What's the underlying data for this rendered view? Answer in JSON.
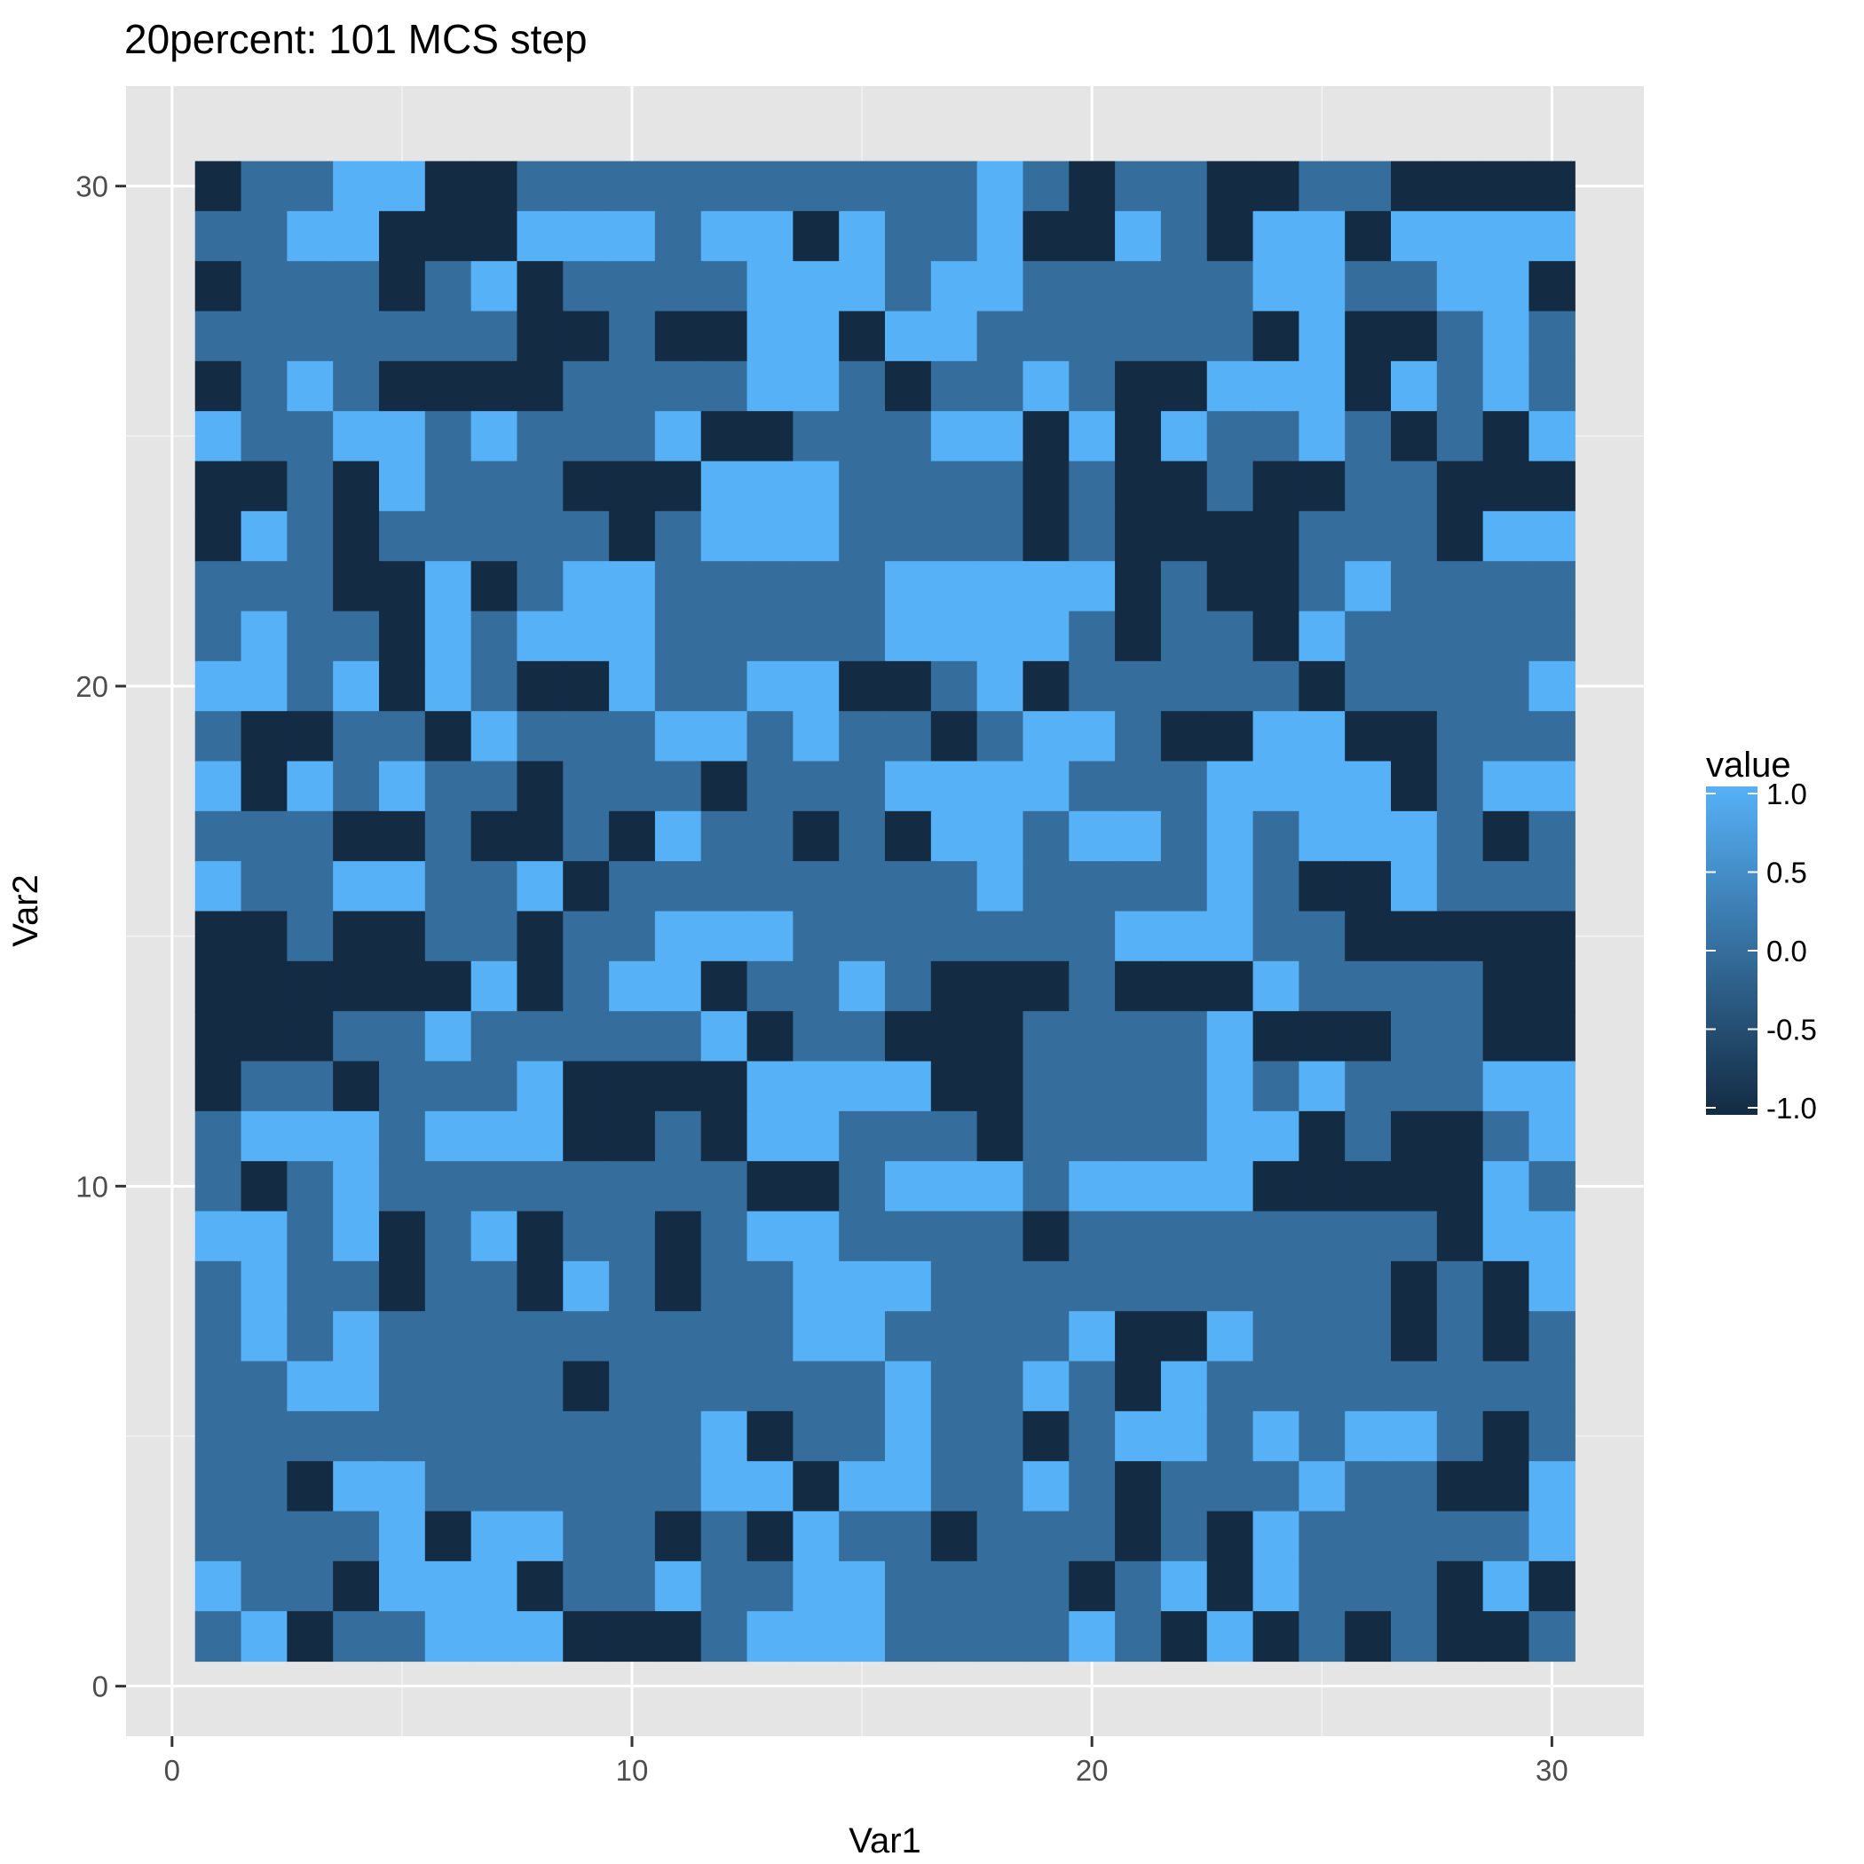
{
  "chart_data": {
    "type": "heatmap",
    "title": "20percent: 101 MCS step",
    "xlabel": "Var1",
    "ylabel": "Var2",
    "xlim": [
      -1.0,
      32.0
    ],
    "ylim": [
      -1.0,
      32.0
    ],
    "x_ticks": [
      0,
      10,
      20,
      30
    ],
    "y_ticks": [
      0,
      10,
      20,
      30
    ],
    "grid": true,
    "legend": {
      "title": "value",
      "placement": "right",
      "ticks": [
        1.0,
        0.5,
        0.0,
        -0.5,
        -1.0
      ],
      "tick_labels": [
        "1.0",
        "0.5",
        "0.0",
        "-0.5",
        "-1.0"
      ],
      "colors": {
        "low": "#132B43",
        "high": "#56B1F7"
      }
    },
    "x": [
      1,
      2,
      3,
      4,
      5,
      6,
      7,
      8,
      9,
      10,
      11,
      12,
      13,
      14,
      15,
      16,
      17,
      18,
      19,
      20,
      21,
      22,
      23,
      24,
      25,
      26,
      27,
      28,
      29,
      30
    ],
    "y": [
      30,
      29,
      28,
      27,
      26,
      25,
      24,
      23,
      22,
      21,
      20,
      19,
      18,
      17,
      16,
      15,
      14,
      13,
      12,
      11,
      10,
      9,
      8,
      7,
      6,
      5,
      4,
      3,
      2,
      1
    ],
    "values": [
      [
        -1,
        0,
        0,
        1,
        1,
        -1,
        -1,
        0,
        0,
        0,
        0,
        0,
        0,
        0,
        0,
        0,
        0,
        1,
        0,
        -1,
        0,
        0,
        -1,
        -1,
        0,
        0,
        -1,
        -1,
        -1,
        -1
      ],
      [
        0,
        0,
        1,
        1,
        -1,
        -1,
        -1,
        1,
        1,
        1,
        0,
        1,
        1,
        -1,
        1,
        0,
        0,
        1,
        -1,
        -1,
        1,
        0,
        -1,
        1,
        1,
        -1,
        1,
        1,
        1,
        1
      ],
      [
        -1,
        0,
        0,
        0,
        -1,
        0,
        1,
        -1,
        0,
        0,
        0,
        0,
        1,
        1,
        1,
        0,
        1,
        1,
        0,
        0,
        0,
        0,
        0,
        1,
        1,
        0,
        0,
        1,
        1,
        -1
      ],
      [
        0,
        0,
        0,
        0,
        0,
        0,
        0,
        -1,
        -1,
        0,
        -1,
        -1,
        1,
        1,
        -1,
        1,
        1,
        0,
        0,
        0,
        0,
        0,
        0,
        -1,
        1,
        -1,
        -1,
        0,
        1,
        0
      ],
      [
        -1,
        0,
        1,
        0,
        -1,
        -1,
        -1,
        -1,
        0,
        0,
        0,
        0,
        1,
        1,
        0,
        -1,
        0,
        0,
        1,
        0,
        -1,
        -1,
        1,
        1,
        1,
        -1,
        1,
        0,
        1,
        0
      ],
      [
        1,
        0,
        0,
        1,
        1,
        0,
        1,
        0,
        0,
        0,
        1,
        -1,
        -1,
        0,
        0,
        0,
        1,
        1,
        -1,
        1,
        -1,
        1,
        0,
        0,
        1,
        0,
        -1,
        0,
        -1,
        1
      ],
      [
        -1,
        -1,
        0,
        -1,
        1,
        0,
        0,
        0,
        -1,
        -1,
        -1,
        1,
        1,
        1,
        0,
        0,
        0,
        0,
        -1,
        0,
        -1,
        -1,
        0,
        -1,
        -1,
        0,
        0,
        -1,
        -1,
        -1
      ],
      [
        -1,
        1,
        0,
        -1,
        0,
        0,
        0,
        0,
        0,
        -1,
        0,
        1,
        1,
        1,
        0,
        0,
        0,
        0,
        -1,
        0,
        -1,
        -1,
        -1,
        -1,
        0,
        0,
        0,
        -1,
        1,
        1
      ],
      [
        0,
        0,
        0,
        -1,
        -1,
        1,
        -1,
        0,
        1,
        1,
        0,
        0,
        0,
        0,
        0,
        1,
        1,
        1,
        1,
        1,
        -1,
        0,
        -1,
        -1,
        0,
        1,
        0,
        0,
        0,
        0
      ],
      [
        0,
        1,
        0,
        0,
        -1,
        1,
        0,
        1,
        1,
        1,
        0,
        0,
        0,
        0,
        0,
        1,
        1,
        1,
        1,
        0,
        -1,
        0,
        0,
        -1,
        1,
        0,
        0,
        0,
        0,
        0
      ],
      [
        1,
        1,
        0,
        1,
        -1,
        1,
        0,
        -1,
        -1,
        1,
        0,
        0,
        1,
        1,
        -1,
        -1,
        0,
        1,
        -1,
        0,
        0,
        0,
        0,
        0,
        -1,
        0,
        0,
        0,
        0,
        1
      ],
      [
        0,
        -1,
        -1,
        0,
        0,
        -1,
        1,
        0,
        0,
        0,
        1,
        1,
        0,
        1,
        0,
        0,
        -1,
        0,
        1,
        1,
        0,
        -1,
        -1,
        1,
        1,
        -1,
        -1,
        0,
        0,
        0
      ],
      [
        1,
        -1,
        1,
        0,
        1,
        0,
        0,
        -1,
        0,
        0,
        0,
        -1,
        0,
        0,
        0,
        1,
        1,
        1,
        1,
        0,
        0,
        0,
        1,
        1,
        1,
        1,
        -1,
        0,
        1,
        1
      ],
      [
        0,
        0,
        0,
        -1,
        -1,
        0,
        -1,
        -1,
        0,
        -1,
        1,
        0,
        0,
        -1,
        0,
        -1,
        1,
        1,
        0,
        1,
        1,
        0,
        1,
        0,
        1,
        1,
        1,
        0,
        -1,
        0
      ],
      [
        1,
        0,
        0,
        1,
        1,
        0,
        0,
        1,
        -1,
        0,
        0,
        0,
        0,
        0,
        0,
        0,
        0,
        1,
        0,
        0,
        0,
        0,
        1,
        0,
        -1,
        -1,
        1,
        0,
        0,
        0
      ],
      [
        -1,
        -1,
        0,
        -1,
        -1,
        0,
        0,
        -1,
        0,
        0,
        1,
        1,
        1,
        0,
        0,
        0,
        0,
        0,
        0,
        0,
        1,
        1,
        1,
        0,
        0,
        -1,
        -1,
        -1,
        -1,
        -1
      ],
      [
        -1,
        -1,
        -1,
        -1,
        -1,
        -1,
        1,
        -1,
        0,
        1,
        1,
        -1,
        0,
        0,
        1,
        0,
        -1,
        -1,
        -1,
        0,
        -1,
        -1,
        -1,
        1,
        0,
        0,
        0,
        0,
        -1,
        -1
      ],
      [
        -1,
        -1,
        -1,
        0,
        0,
        1,
        0,
        0,
        0,
        0,
        0,
        1,
        -1,
        0,
        0,
        -1,
        -1,
        -1,
        0,
        0,
        0,
        0,
        1,
        -1,
        -1,
        -1,
        0,
        0,
        -1,
        -1
      ],
      [
        -1,
        0,
        0,
        -1,
        0,
        0,
        0,
        1,
        -1,
        -1,
        -1,
        -1,
        1,
        1,
        1,
        1,
        -1,
        -1,
        0,
        0,
        0,
        0,
        1,
        0,
        1,
        0,
        0,
        0,
        1,
        1
      ],
      [
        0,
        1,
        1,
        1,
        0,
        1,
        1,
        1,
        -1,
        -1,
        0,
        -1,
        1,
        1,
        0,
        0,
        0,
        -1,
        0,
        0,
        0,
        0,
        1,
        1,
        -1,
        0,
        -1,
        -1,
        0,
        1
      ],
      [
        0,
        -1,
        0,
        1,
        0,
        0,
        0,
        0,
        0,
        0,
        0,
        0,
        -1,
        -1,
        0,
        1,
        1,
        1,
        0,
        1,
        1,
        1,
        1,
        -1,
        -1,
        -1,
        -1,
        -1,
        1,
        0
      ],
      [
        1,
        1,
        0,
        1,
        -1,
        0,
        1,
        -1,
        0,
        0,
        -1,
        0,
        1,
        1,
        0,
        0,
        0,
        0,
        -1,
        0,
        0,
        0,
        0,
        0,
        0,
        0,
        0,
        -1,
        1,
        1
      ],
      [
        0,
        1,
        0,
        0,
        -1,
        0,
        0,
        -1,
        1,
        0,
        -1,
        0,
        0,
        1,
        1,
        1,
        0,
        0,
        0,
        0,
        0,
        0,
        0,
        0,
        0,
        0,
        -1,
        0,
        -1,
        1
      ],
      [
        0,
        1,
        0,
        1,
        0,
        0,
        0,
        0,
        0,
        0,
        0,
        0,
        0,
        1,
        1,
        0,
        0,
        0,
        0,
        1,
        -1,
        -1,
        1,
        0,
        0,
        0,
        -1,
        0,
        -1,
        0
      ],
      [
        0,
        0,
        1,
        1,
        0,
        0,
        0,
        0,
        -1,
        0,
        0,
        0,
        0,
        0,
        0,
        1,
        0,
        0,
        1,
        0,
        -1,
        1,
        0,
        0,
        0,
        0,
        0,
        0,
        0,
        0
      ],
      [
        0,
        0,
        0,
        0,
        0,
        0,
        0,
        0,
        0,
        0,
        0,
        1,
        -1,
        0,
        0,
        1,
        0,
        0,
        -1,
        0,
        1,
        1,
        0,
        1,
        0,
        1,
        1,
        0,
        -1,
        0
      ],
      [
        0,
        0,
        -1,
        1,
        1,
        0,
        0,
        0,
        0,
        0,
        0,
        1,
        1,
        -1,
        1,
        1,
        0,
        0,
        1,
        0,
        -1,
        0,
        0,
        0,
        1,
        0,
        0,
        -1,
        -1,
        1
      ],
      [
        0,
        0,
        0,
        0,
        1,
        -1,
        1,
        1,
        0,
        0,
        -1,
        0,
        -1,
        1,
        0,
        0,
        -1,
        0,
        0,
        0,
        -1,
        0,
        -1,
        1,
        0,
        0,
        0,
        0,
        0,
        1
      ],
      [
        1,
        0,
        0,
        -1,
        1,
        1,
        1,
        -1,
        0,
        0,
        1,
        0,
        0,
        1,
        1,
        0,
        0,
        0,
        0,
        -1,
        0,
        1,
        -1,
        1,
        0,
        0,
        0,
        -1,
        1,
        -1
      ],
      [
        0,
        1,
        -1,
        0,
        0,
        1,
        1,
        1,
        -1,
        -1,
        -1,
        0,
        1,
        1,
        1,
        0,
        0,
        0,
        0,
        1,
        0,
        -1,
        1,
        -1,
        0,
        -1,
        0,
        -1,
        -1,
        0
      ]
    ]
  }
}
